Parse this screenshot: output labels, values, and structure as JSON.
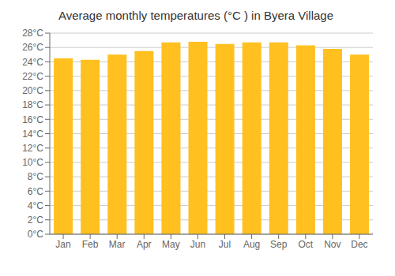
{
  "chart_data": {
    "type": "bar",
    "title": "Average monthly temperatures (°C ) in Byera Village",
    "categories": [
      "Jan",
      "Feb",
      "Mar",
      "Apr",
      "May",
      "Jun",
      "Jul",
      "Aug",
      "Sep",
      "Oct",
      "Nov",
      "Dec"
    ],
    "values": [
      24.5,
      24.3,
      25.0,
      25.5,
      26.7,
      26.8,
      26.5,
      26.7,
      26.7,
      26.3,
      25.8,
      25.0
    ],
    "color": "#FFC020",
    "ylim": [
      0,
      28
    ],
    "yticks": [
      {
        "value": 0,
        "label": "0°C"
      },
      {
        "value": 2,
        "label": "2°C"
      },
      {
        "value": 4,
        "label": "4°C"
      },
      {
        "value": 6,
        "label": "6°C"
      },
      {
        "value": 8,
        "label": "8°C"
      },
      {
        "value": 10,
        "label": "10°C"
      },
      {
        "value": 12,
        "label": "12°C"
      },
      {
        "value": 14,
        "label": "14°C"
      },
      {
        "value": 16,
        "label": "16°C"
      },
      {
        "value": 18,
        "label": "18°C"
      },
      {
        "value": 20,
        "label": "20°C"
      },
      {
        "value": 22,
        "label": "22°C"
      },
      {
        "value": 24,
        "label": "24°C"
      },
      {
        "value": 26,
        "label": "26°C"
      },
      {
        "value": 28,
        "label": "28°C"
      }
    ],
    "grid": true
  }
}
